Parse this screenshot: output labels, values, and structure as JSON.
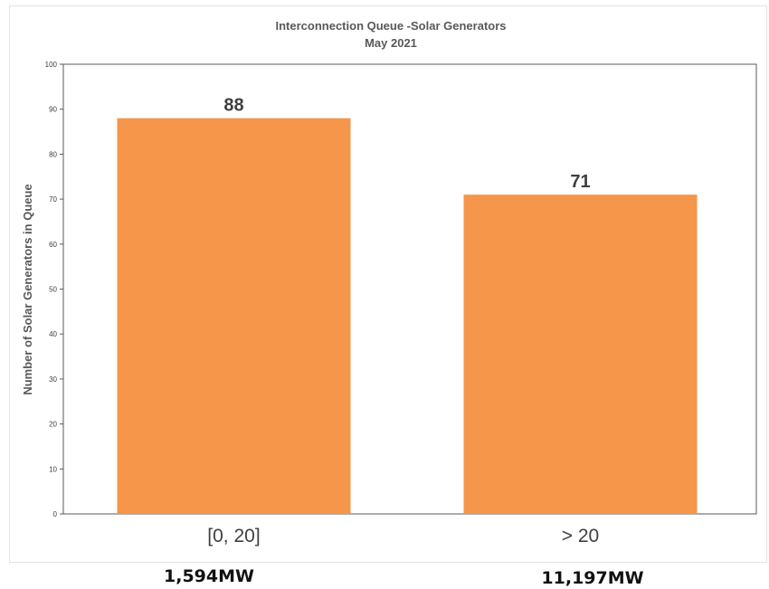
{
  "chart_data": {
    "type": "bar",
    "title": "Interconnection Queue -Solar Generators",
    "subtitle": "May 2021",
    "ylabel": "Number of Solar Generators in Queue",
    "xlabel": "",
    "categories": [
      "[0, 20]",
      "> 20"
    ],
    "values": [
      88,
      71
    ],
    "data_labels": [
      "88",
      "71"
    ],
    "ylim": [
      0,
      100
    ],
    "yticks": [
      0,
      10,
      20,
      30,
      40,
      50,
      60,
      70,
      80,
      90,
      100
    ],
    "grid": false,
    "bar_color": "#f5964a"
  },
  "annotations": {
    "capacity_labels": [
      "1,594MW",
      "11,197MW"
    ]
  }
}
